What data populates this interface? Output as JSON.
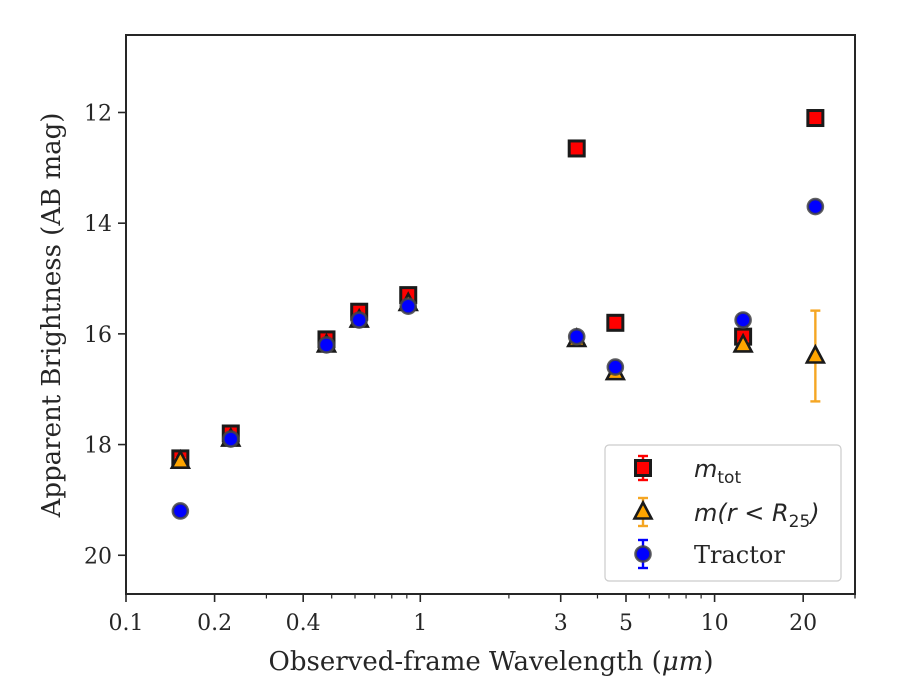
{
  "chart_data": {
    "type": "scatter",
    "xlabel_prefix": "Observed-frame Wavelength (",
    "xlabel_unit": "μm",
    "xlabel_suffix": ")",
    "ylabel": "Apparent Brightness (AB mag)",
    "x_scale": "log",
    "xlim": [
      0.1,
      30
    ],
    "ylim": [
      20.7,
      10.6
    ],
    "y_inverted": true,
    "x_ticks": [
      {
        "value": 0.1,
        "label": "0.1"
      },
      {
        "value": 0.2,
        "label": "0.2"
      },
      {
        "value": 0.4,
        "label": "0.4"
      },
      {
        "value": 1,
        "label": "1"
      },
      {
        "value": 3,
        "label": "3"
      },
      {
        "value": 5,
        "label": "5"
      },
      {
        "value": 10,
        "label": "10"
      },
      {
        "value": 20,
        "label": "20"
      }
    ],
    "y_ticks": [
      {
        "value": 12,
        "label": "12"
      },
      {
        "value": 14,
        "label": "14"
      },
      {
        "value": 16,
        "label": "16"
      },
      {
        "value": 18,
        "label": "18"
      },
      {
        "value": 20,
        "label": "20"
      }
    ],
    "grid": false,
    "legend_position": "bottom-right",
    "series": [
      {
        "name": "m_tot",
        "legend_main": "m",
        "legend_sub": "tot",
        "marker": "square",
        "face_color": "#ff0000",
        "edge_color": "#1a1a1a",
        "err_color": "#ff0000",
        "points": [
          {
            "x": 0.153,
            "y": 18.25,
            "err": 0.05
          },
          {
            "x": 0.227,
            "y": 17.8,
            "err": 0.05
          },
          {
            "x": 0.48,
            "y": 16.1,
            "err": 0.05
          },
          {
            "x": 0.62,
            "y": 15.6,
            "err": 0.05
          },
          {
            "x": 0.91,
            "y": 15.3,
            "err": 0.05
          },
          {
            "x": 3.4,
            "y": 12.65,
            "err": 0.02
          },
          {
            "x": 4.6,
            "y": 15.8,
            "err": 0.02
          },
          {
            "x": 12.5,
            "y": 16.05,
            "err": 0.02
          },
          {
            "x": 22.0,
            "y": 12.1,
            "err": 0.02
          }
        ]
      },
      {
        "name": "m(r < R_25)",
        "legend_pre": "m(r < R",
        "legend_sub": "25",
        "legend_post": ")",
        "marker": "triangle",
        "face_color": "#ffa500",
        "edge_color": "#1a1a1a",
        "err_color": "#f5a623",
        "points": [
          {
            "x": 0.153,
            "y": 18.3,
            "err": 0.05
          },
          {
            "x": 0.227,
            "y": 17.9,
            "err": 0.05
          },
          {
            "x": 0.48,
            "y": 16.2,
            "err": 0.05
          },
          {
            "x": 0.62,
            "y": 15.75,
            "err": 0.05
          },
          {
            "x": 0.91,
            "y": 15.45,
            "err": 0.05
          },
          {
            "x": 3.4,
            "y": 16.1,
            "err": 0.05
          },
          {
            "x": 4.6,
            "y": 16.7,
            "err": 0.05
          },
          {
            "x": 12.5,
            "y": 16.2,
            "err": 0.05
          },
          {
            "x": 22.0,
            "y": 16.4,
            "err": 0.82
          }
        ]
      },
      {
        "name": "Tractor",
        "legend_text": "Tractor",
        "marker": "circle",
        "face_color": "#0000ff",
        "edge_color": "#444444",
        "err_color": "#0000ff",
        "points": [
          {
            "x": 0.153,
            "y": 19.2,
            "err": 0.05
          },
          {
            "x": 0.227,
            "y": 17.9,
            "err": 0.05
          },
          {
            "x": 0.48,
            "y": 16.2,
            "err": 0.05
          },
          {
            "x": 0.62,
            "y": 15.75,
            "err": 0.05
          },
          {
            "x": 0.91,
            "y": 15.5,
            "err": 0.05
          },
          {
            "x": 3.4,
            "y": 16.05,
            "err": 0.05
          },
          {
            "x": 4.6,
            "y": 16.6,
            "err": 0.08
          },
          {
            "x": 12.5,
            "y": 15.75,
            "err": 0.1
          },
          {
            "x": 22.0,
            "y": 13.7,
            "err": 0.08
          }
        ]
      }
    ]
  }
}
